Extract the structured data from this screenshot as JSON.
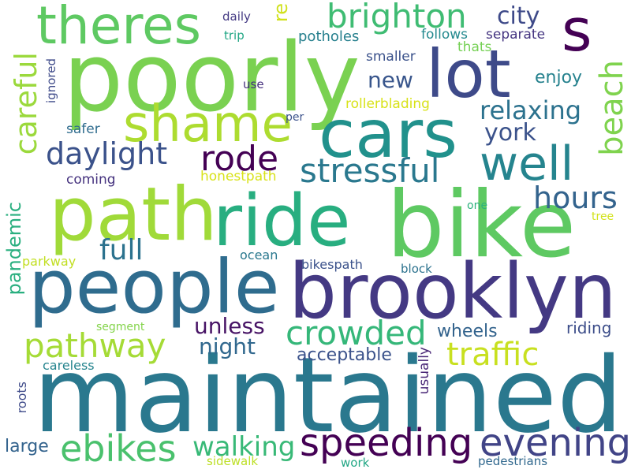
{
  "words": {
    "maintained": {
      "text": "maintained",
      "color": "#2a788e"
    },
    "poorly": {
      "text": "poorly",
      "color": "#7ad151"
    },
    "bike": {
      "text": "bike",
      "color": "#5ec962"
    },
    "brooklyn": {
      "text": "brooklyn",
      "color": "#443983"
    },
    "people": {
      "text": "people",
      "color": "#2f6c8e"
    },
    "path": {
      "text": "path",
      "color": "#a0da39"
    },
    "ride": {
      "text": "ride",
      "color": "#28ae80"
    },
    "cars": {
      "text": "cars",
      "color": "#21918c"
    },
    "lot": {
      "text": "lot",
      "color": "#3e4a89"
    },
    "theres": {
      "text": "theres",
      "color": "#5ec962"
    },
    "s": {
      "text": "s",
      "color": "#440154"
    },
    "shame": {
      "text": "shame",
      "color": "#addc30"
    },
    "speeding": {
      "text": "speeding",
      "color": "#440154"
    },
    "evening": {
      "text": "evening",
      "color": "#414487"
    },
    "well": {
      "text": "well",
      "color": "#25848e"
    },
    "stressful": {
      "text": "stressful",
      "color": "#2a788e"
    },
    "crowded": {
      "text": "crowded",
      "color": "#35b779"
    },
    "pathway": {
      "text": "pathway",
      "color": "#a5db36"
    },
    "ebikes": {
      "text": "ebikes",
      "color": "#4ac16d"
    },
    "walking": {
      "text": "walking",
      "color": "#38b977"
    },
    "traffic": {
      "text": "traffic",
      "color": "#c8e020"
    },
    "rode": {
      "text": "rode",
      "color": "#440154"
    },
    "daylight": {
      "text": "daylight",
      "color": "#3b528b"
    },
    "brighton": {
      "text": "brighton",
      "color": "#3fbc73"
    },
    "careful": {
      "text": "careful",
      "color": "#9bd93c"
    },
    "beach": {
      "text": "beach",
      "color": "#7fd34e"
    },
    "hours": {
      "text": "hours",
      "color": "#33638d"
    },
    "full": {
      "text": "full",
      "color": "#2c728e"
    },
    "relaxing": {
      "text": "relaxing",
      "color": "#2c728e"
    },
    "york": {
      "text": "york",
      "color": "#3b528b"
    },
    "new": {
      "text": "new",
      "color": "#39568c"
    },
    "city": {
      "text": "city",
      "color": "#3e4a89"
    },
    "unless": {
      "text": "unless",
      "color": "#471365"
    },
    "night": {
      "text": "night",
      "color": "#31688e"
    },
    "re": {
      "text": "re",
      "color": "#d0e11c"
    },
    "pandemic": {
      "text": "pandemic",
      "color": "#29af7f"
    },
    "acceptable": {
      "text": "acceptable",
      "color": "#3b528b"
    },
    "wheels": {
      "text": "wheels",
      "color": "#33638d"
    },
    "riding": {
      "text": "riding",
      "color": "#3d4e8a"
    },
    "large": {
      "text": "large",
      "color": "#33638d"
    },
    "enjoy": {
      "text": "enjoy",
      "color": "#26828e"
    },
    "potholes": {
      "text": "potholes",
      "color": "#27808e"
    },
    "follows": {
      "text": "follows",
      "color": "#23898e"
    },
    "separate": {
      "text": "separate",
      "color": "#453581"
    },
    "smaller": {
      "text": "smaller",
      "color": "#3b528b"
    },
    "thats": {
      "text": "thats",
      "color": "#75d054"
    },
    "rollerblading": {
      "text": "rollerblading",
      "color": "#d8e219"
    },
    "honestpath": {
      "text": "honestpath",
      "color": "#d8e219"
    },
    "coming": {
      "text": "coming",
      "color": "#46337f"
    },
    "safer": {
      "text": "safer",
      "color": "#2f6c8e"
    },
    "ignored": {
      "text": "ignored",
      "color": "#3e4a89"
    },
    "use": {
      "text": "use",
      "color": "#46307e"
    },
    "daily": {
      "text": "daily",
      "color": "#443983"
    },
    "trip": {
      "text": "trip",
      "color": "#22a785"
    },
    "per": {
      "text": "per",
      "color": "#3b528b"
    },
    "one": {
      "text": "one",
      "color": "#2db27d"
    },
    "tree": {
      "text": "tree",
      "color": "#d2e21b"
    },
    "parkway": {
      "text": "parkway",
      "color": "#c2df23"
    },
    "ocean": {
      "text": "ocean",
      "color": "#2a788e"
    },
    "bikespath": {
      "text": "bikespath",
      "color": "#3b528b"
    },
    "block": {
      "text": "block",
      "color": "#2c728e"
    },
    "segment": {
      "text": "segment",
      "color": "#84d44b"
    },
    "careless": {
      "text": "careless",
      "color": "#25848e"
    },
    "usually": {
      "text": "usually",
      "color": "#482576"
    },
    "roots": {
      "text": "roots",
      "color": "#3e4a89"
    },
    "sidewalk": {
      "text": "sidewalk",
      "color": "#bddf26"
    },
    "work": {
      "text": "work",
      "color": "#22a785"
    },
    "pedestrians": {
      "text": "pedestrians",
      "color": "#31688e"
    }
  }
}
